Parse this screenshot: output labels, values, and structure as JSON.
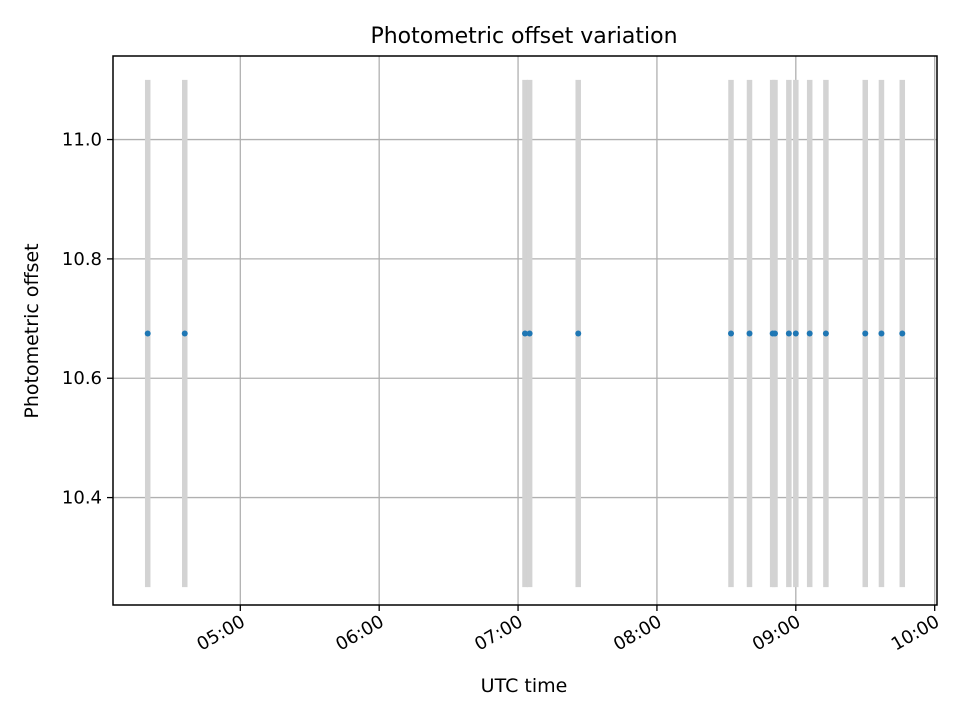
{
  "chart_data": {
    "type": "scatter",
    "title": "Photometric offset variation",
    "xlabel": "UTC time",
    "ylabel": "Photometric offset",
    "x_axis_kind": "time",
    "x_ticks": [
      "05:00",
      "06:00",
      "07:00",
      "08:00",
      "09:00",
      "10:00"
    ],
    "y_ticks": [
      "10.4",
      "10.6",
      "10.8",
      "11.0"
    ],
    "xlim": [
      "04:05",
      "10:01"
    ],
    "ylim": [
      10.22,
      11.14
    ],
    "grid": true,
    "colors": {
      "points": "#1f77b4",
      "error_bars": "#d3d3d3",
      "grid": "#b0b0b0"
    },
    "series": [
      {
        "x": [
          "04:20",
          "04:36",
          "07:03",
          "07:05",
          "07:26",
          "08:32",
          "08:40",
          "08:50",
          "08:51",
          "08:57",
          "09:00",
          "09:06",
          "09:13",
          "09:30",
          "09:37",
          "09:46"
        ],
        "y": [
          10.675,
          10.675,
          10.675,
          10.675,
          10.675,
          10.675,
          10.675,
          10.675,
          10.675,
          10.675,
          10.675,
          10.675,
          10.675,
          10.675,
          10.675,
          10.675
        ],
        "y_lower": 10.25,
        "y_upper": 11.1
      }
    ]
  }
}
